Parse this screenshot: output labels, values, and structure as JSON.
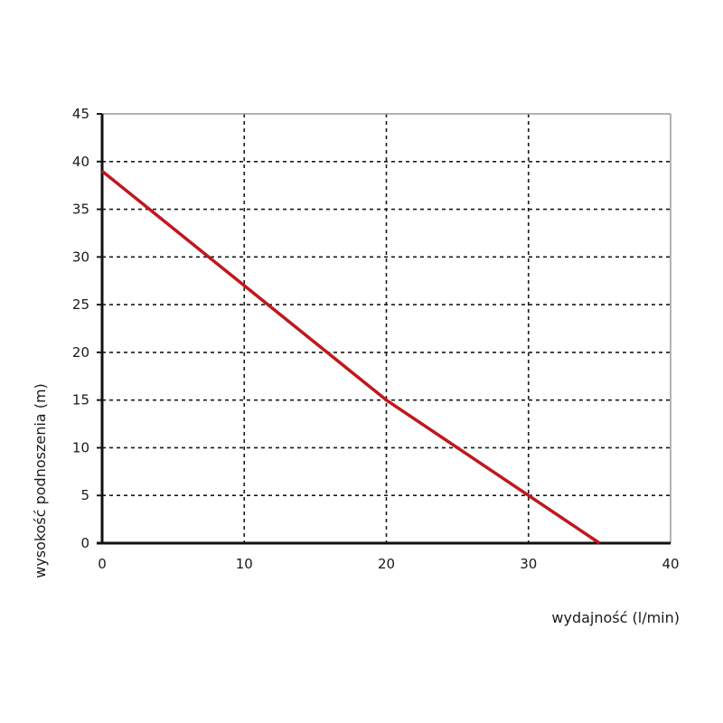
{
  "chart_data": {
    "type": "line",
    "title": "",
    "xlabel": "wydajność (l/min)",
    "ylabel": "wysokość podnoszenia (m)",
    "xlim": [
      0,
      40
    ],
    "ylim": [
      0,
      45
    ],
    "xticks": [
      "0",
      "10",
      "20",
      "30",
      "40"
    ],
    "yticks": [
      "0",
      "5",
      "10",
      "15",
      "20",
      "25",
      "30",
      "35",
      "40",
      "45"
    ],
    "grid": true,
    "legend": "none",
    "series": [
      {
        "color": "#c0171d",
        "x": [
          0,
          10,
          20,
          30,
          35
        ],
        "y": [
          39,
          27,
          15,
          5,
          0
        ]
      }
    ]
  }
}
